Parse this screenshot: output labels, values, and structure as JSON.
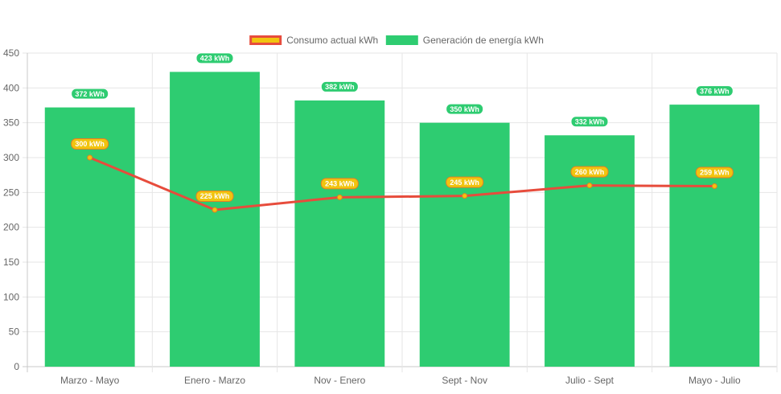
{
  "chart_data": {
    "type": "bar",
    "categories": [
      "Marzo - Mayo",
      "Enero - Marzo",
      "Nov - Enero",
      "Sept - Nov",
      "Julio - Sept",
      "Mayo - Julio"
    ],
    "series": [
      {
        "name": "Generación de energía kWh",
        "type": "bar",
        "values": [
          372,
          423,
          382,
          350,
          332,
          376
        ],
        "labels": [
          "372 kWh",
          "423 kWh",
          "382 kWh",
          "350 kWh",
          "332 kWh",
          "376 kWh"
        ],
        "color": "#2ecc71"
      },
      {
        "name": "Consumo actual kWh",
        "type": "line",
        "values": [
          300,
          225,
          243,
          245,
          260,
          259
        ],
        "labels": [
          "300 kWh",
          "225 kWh",
          "243 kWh",
          "245 kWh",
          "260 kWh",
          "259 kWh"
        ],
        "color": "#e74c3c",
        "point_color": "#f1c40f"
      }
    ],
    "legend_order": [
      "Consumo actual kWh",
      "Generación de energía kWh"
    ],
    "legend_position": "top-center",
    "ylim": [
      0,
      450
    ],
    "yticks": [
      0,
      50,
      100,
      150,
      200,
      250,
      300,
      350,
      400,
      450
    ],
    "grid": true,
    "label_label_color": "#f1c40f"
  }
}
